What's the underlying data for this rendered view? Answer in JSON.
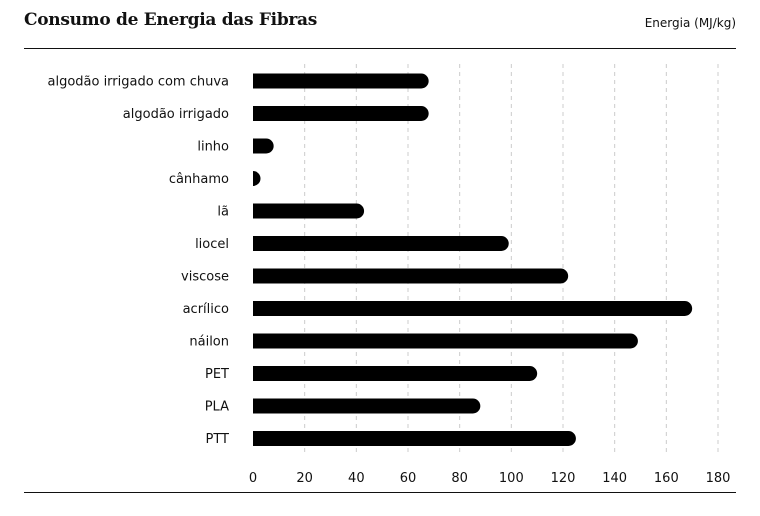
{
  "chart_data": {
    "type": "bar",
    "orientation": "horizontal",
    "title": "Consumo de Energia das Fibras",
    "unit_label": "Energia (MJ/kg)",
    "categories": [
      "algodão irrigado com chuva",
      "algodão irrigado",
      "linho",
      "cânhamo",
      "lã",
      "liocel",
      "viscose",
      "acrílico",
      "náilon",
      "PET",
      "PLA",
      "PTT"
    ],
    "values": [
      68,
      68,
      8,
      2,
      43,
      99,
      122,
      170,
      149,
      110,
      88,
      125
    ],
    "xlim": [
      0,
      180
    ],
    "xticks": [
      0,
      20,
      40,
      60,
      80,
      100,
      120,
      140,
      160,
      180
    ],
    "grid": "vertical-dashed",
    "bar_color": "#000000"
  }
}
